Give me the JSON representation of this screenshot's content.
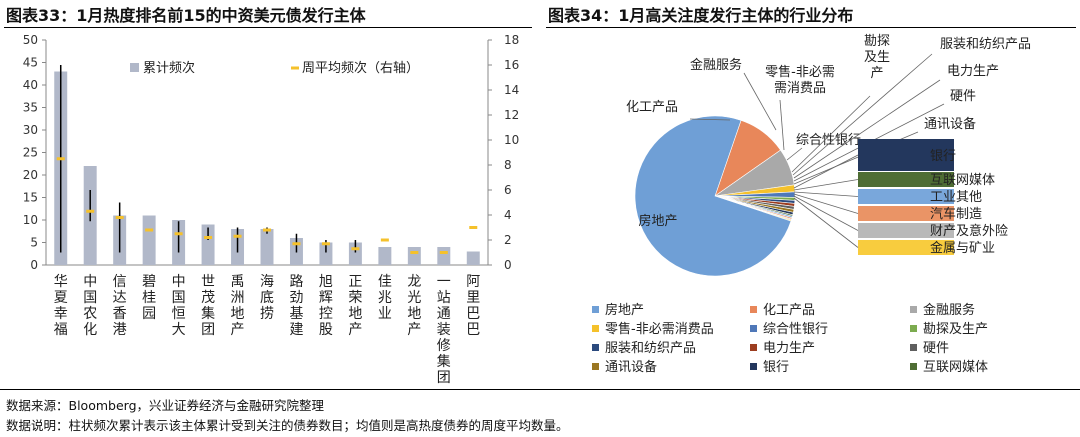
{
  "left_title": "图表33：1月热度排名前15的中资美元债发行主体",
  "right_title": "图表34：1月高关注度发行主体的行业分布",
  "footnote_source": "数据来源：Bloomberg，兴业证券经济与金融研究院整理",
  "footnote_note": "数据说明：柱状频次累计表示该主体累计受到关注的债券数目；均值则是高热度债券的周度平均数量。",
  "chart_data": [
    {
      "type": "bar",
      "categories": [
        "华夏幸福",
        "中国农化",
        "信达香港",
        "碧桂园",
        "中国恒大",
        "世茂集团",
        "禹洲地产",
        "海底捞",
        "路劲基建",
        "旭辉控股",
        "正荣地产",
        "佳兆业",
        "龙光地产",
        "一站通装修集团",
        "阿里巴巴"
      ],
      "series": [
        {
          "name": "累计频次",
          "values": [
            43,
            22,
            11,
            11,
            10,
            9,
            8,
            8,
            6,
            5,
            5,
            4,
            4,
            4,
            3
          ],
          "axis": "left",
          "color": "#b1b8c9"
        },
        {
          "name": "周平均频次（右轴）",
          "values": [
            8.5,
            4.3,
            3.8,
            2.8,
            2.5,
            2.2,
            2.3,
            2.8,
            1.7,
            1.7,
            1.3,
            2.0,
            1.0,
            1.0,
            3.0
          ],
          "axis": "right",
          "color": "#f5c12b"
        }
      ],
      "range_bars": [
        [
          1,
          16
        ],
        [
          3.5,
          6
        ],
        [
          1,
          5
        ],
        null,
        [
          1,
          3.5
        ],
        [
          2,
          3
        ],
        [
          1,
          3
        ],
        [
          2.5,
          3
        ],
        [
          1,
          2.5
        ],
        [
          1,
          2
        ],
        [
          1,
          2
        ],
        null,
        null,
        null,
        null
      ],
      "ylim_left": [
        0,
        50
      ],
      "ylim_right": [
        0,
        18
      ],
      "yticks_left": [
        0,
        5,
        10,
        15,
        20,
        25,
        30,
        35,
        40,
        45,
        50
      ],
      "yticks_right": [
        0,
        2,
        4,
        6,
        8,
        10,
        12,
        14,
        16,
        18
      ],
      "legend_position": "top"
    },
    {
      "type": "pie",
      "labels": [
        "房地产",
        "化工产品",
        "金融服务",
        "零售-非必需消费品",
        "综合性银行",
        "勘探及生产",
        "服装和纺织产品",
        "电力生产",
        "硬件",
        "通讯设备",
        "银行",
        "互联网媒体",
        "工业其他",
        "汽车制造",
        "财产及意外险",
        "金属与矿业"
      ],
      "values": [
        75.2,
        10.0,
        7.5,
        1.4,
        1.1,
        0.6,
        0.6,
        0.6,
        0.6,
        0.6,
        0.5,
        0.3,
        0.3,
        0.3,
        0.2,
        0.2
      ],
      "colors": [
        "#6f9fd6",
        "#e8875a",
        "#a9a9a9",
        "#f5c12b",
        "#4f78b8",
        "#7cab4f",
        "#2b4a7e",
        "#9c3d20",
        "#5f5f5f",
        "#9a7722",
        "#23375d",
        "#4e6d34",
        "#79a7db",
        "#ea9466",
        "#b9b9b9",
        "#f8cc3e"
      ],
      "callouts": [
        "房地产",
        "化工产品",
        "金融服务",
        "零售-非必需\n需消费品",
        "综合性银行",
        "勘探\n及生\n产",
        "服装和纺织产品",
        "电力生产",
        "硬件",
        "通讯设备"
      ],
      "side_legend": [
        "银行",
        "互联网媒体",
        "工业其他",
        "汽车制造",
        "财产及意外险",
        "金属与矿业"
      ],
      "bottom_legend": [
        "房地产",
        "化工产品",
        "金融服务",
        "零售-非必需消费品",
        "综合性银行",
        "勘探及生产",
        "服装和纺织产品",
        "电力生产",
        "硬件",
        "通讯设备",
        "银行",
        "互联网媒体"
      ],
      "legend_position": "bottom"
    }
  ]
}
